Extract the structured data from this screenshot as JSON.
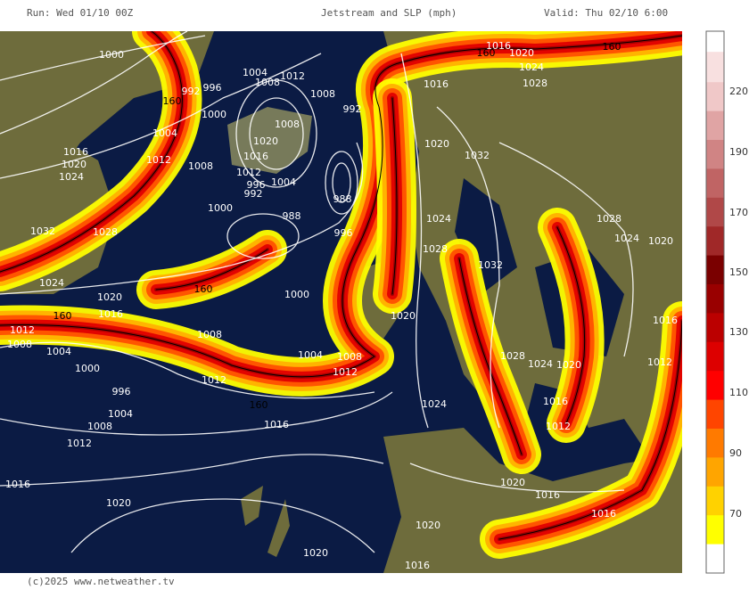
{
  "header": {
    "run": "Run: Wed 01/10 00Z",
    "title": "Jetstream and SLP (mph)",
    "valid": "Valid: Thu 02/10 6:00"
  },
  "footer": {
    "copyright": "(c)2025 www.netweather.tv"
  },
  "colorbar": {
    "ticks": [
      "220",
      "190",
      "170",
      "150",
      "130",
      "110",
      "90",
      "70"
    ]
  },
  "isobar_labels": [
    "1000",
    "992",
    "996",
    "1000",
    "1004",
    "1008",
    "1012",
    "1016",
    "1020",
    "1024",
    "1032",
    "1028",
    "1024",
    "1020",
    "1016",
    "1012",
    "1008",
    "1004",
    "1000",
    "996",
    "1004",
    "1008",
    "1012",
    "1016",
    "1020",
    "1020",
    "1016",
    "1012",
    "1008",
    "1008",
    "1004",
    "1012",
    "1000",
    "996",
    "988",
    "988",
    "992",
    "1004",
    "1008",
    "1012",
    "1008",
    "1008",
    "1020",
    "1016",
    "1012",
    "996",
    "992",
    "1004",
    "1000",
    "1016",
    "1020",
    "1024",
    "1028",
    "1016",
    "1020",
    "1032",
    "1024",
    "1028",
    "1032",
    "1028",
    "1024",
    "1020",
    "1020",
    "1028",
    "1024",
    "1020",
    "1016",
    "1012",
    "1016",
    "1012",
    "1024",
    "1020",
    "1016",
    "1016",
    "1020",
    "1016",
    "160",
    "160",
    "160",
    "160",
    "160",
    "160"
  ]
}
